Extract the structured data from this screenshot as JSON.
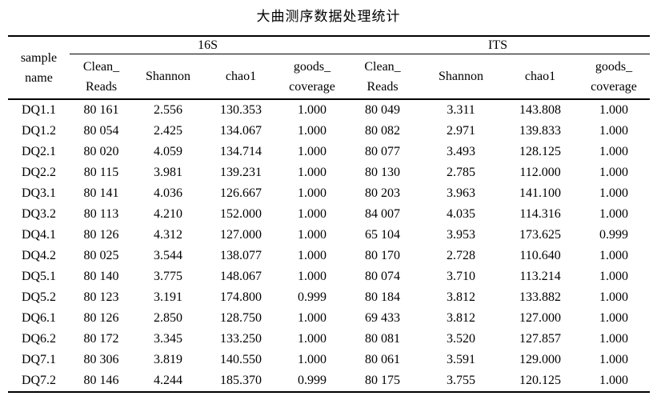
{
  "title": "大曲测序数据处理统计",
  "colors": {
    "text": "#000000",
    "background": "#ffffff",
    "rule": "#000000"
  },
  "table": {
    "header": {
      "sample": "sample\nname",
      "groups": [
        {
          "label": "16S"
        },
        {
          "label": "ITS"
        }
      ],
      "metrics": {
        "clean_reads": "Clean_\nReads",
        "shannon": "Shannon",
        "chao1": "chao1",
        "goods_coverage": "goods_\ncoverage"
      }
    },
    "rows": [
      {
        "sample": "DQ1.1",
        "values": [
          "80 161",
          "2.556",
          "130.353",
          "1.000",
          "80 049",
          "3.311",
          "143.808",
          "1.000"
        ]
      },
      {
        "sample": "DQ1.2",
        "values": [
          "80 054",
          "2.425",
          "134.067",
          "1.000",
          "80 082",
          "2.971",
          "139.833",
          "1.000"
        ]
      },
      {
        "sample": "DQ2.1",
        "values": [
          "80 020",
          "4.059",
          "134.714",
          "1.000",
          "80 077",
          "3.493",
          "128.125",
          "1.000"
        ]
      },
      {
        "sample": "DQ2.2",
        "values": [
          "80 115",
          "3.981",
          "139.231",
          "1.000",
          "80 130",
          "2.785",
          "112.000",
          "1.000"
        ]
      },
      {
        "sample": "DQ3.1",
        "values": [
          "80 141",
          "4.036",
          "126.667",
          "1.000",
          "80 203",
          "3.963",
          "141.100",
          "1.000"
        ]
      },
      {
        "sample": "DQ3.2",
        "values": [
          "80 113",
          "4.210",
          "152.000",
          "1.000",
          "84 007",
          "4.035",
          "114.316",
          "1.000"
        ]
      },
      {
        "sample": "DQ4.1",
        "values": [
          "80 126",
          "4.312",
          "127.000",
          "1.000",
          "65 104",
          "3.953",
          "173.625",
          "0.999"
        ]
      },
      {
        "sample": "DQ4.2",
        "values": [
          "80 025",
          "3.544",
          "138.077",
          "1.000",
          "80 170",
          "2.728",
          "110.640",
          "1.000"
        ]
      },
      {
        "sample": "DQ5.1",
        "values": [
          "80 140",
          "3.775",
          "148.067",
          "1.000",
          "80 074",
          "3.710",
          "113.214",
          "1.000"
        ]
      },
      {
        "sample": "DQ5.2",
        "values": [
          "80 123",
          "3.191",
          "174.800",
          "0.999",
          "80 184",
          "3.812",
          "133.882",
          "1.000"
        ]
      },
      {
        "sample": "DQ6.1",
        "values": [
          "80 126",
          "2.850",
          "128.750",
          "1.000",
          "69 433",
          "3.812",
          "127.000",
          "1.000"
        ]
      },
      {
        "sample": "DQ6.2",
        "values": [
          "80 172",
          "3.345",
          "133.250",
          "1.000",
          "80 081",
          "3.520",
          "127.857",
          "1.000"
        ]
      },
      {
        "sample": "DQ7.1",
        "values": [
          "80 306",
          "3.819",
          "140.550",
          "1.000",
          "80 061",
          "3.591",
          "129.000",
          "1.000"
        ]
      },
      {
        "sample": "DQ7.2",
        "values": [
          "80 146",
          "4.244",
          "185.370",
          "0.999",
          "80 175",
          "3.755",
          "120.125",
          "1.000"
        ]
      }
    ]
  }
}
